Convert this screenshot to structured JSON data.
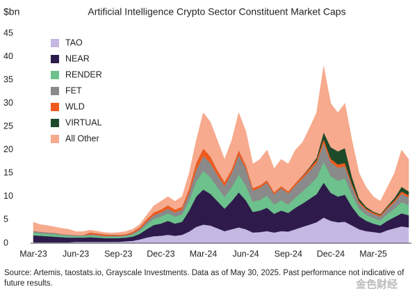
{
  "chart_data": {
    "type": "stacked_area",
    "title": "Artificial Intelligence Crypto Sector Constituent Market Caps",
    "ylabel": "$bn",
    "source": "Source: Artemis, taostats.io, Grayscale Investments. Data as of May 30, 2025. Past performance not indicative of future results.",
    "watermark": "金色财经",
    "legend": "upper left",
    "ylim": [
      0,
      45
    ],
    "yticks": [
      0,
      5,
      10,
      15,
      20,
      25,
      30,
      35,
      40,
      45
    ],
    "categories": [
      "Mar-23",
      null,
      null,
      null,
      null,
      null,
      "Jun-23",
      null,
      null,
      null,
      null,
      null,
      "Sep-23",
      null,
      null,
      null,
      null,
      null,
      "Dec-23",
      null,
      null,
      null,
      null,
      null,
      "Mar-24",
      null,
      null,
      null,
      null,
      null,
      "Jun-24",
      null,
      null,
      null,
      null,
      null,
      "Sep-24",
      null,
      null,
      null,
      null,
      null,
      "Dec-24",
      null,
      null,
      null,
      null,
      null,
      "Mar-25",
      null,
      null,
      null,
      null,
      null
    ],
    "series": [
      {
        "name": "TAO",
        "color": "#c4b8e3",
        "values": [
          0.2,
          0.2,
          0.2,
          0.2,
          0.2,
          0.2,
          0.3,
          0.3,
          0.3,
          0.3,
          0.3,
          0.3,
          0.3,
          0.4,
          0.5,
          0.8,
          1.2,
          1.5,
          1.6,
          1.8,
          1.6,
          1.8,
          2.5,
          3.5,
          4,
          3.8,
          3.2,
          2.6,
          3,
          3.4,
          3,
          2.3,
          2.4,
          2.6,
          2.3,
          2.6,
          2.5,
          3,
          3.5,
          4,
          4.5,
          5.5,
          4.8,
          4.5,
          4.6,
          3.8,
          3,
          2.6,
          2.4,
          2.2,
          2.8,
          3.2,
          3.6,
          3.4
        ]
      },
      {
        "name": "NEAR",
        "color": "#2e1b4b",
        "values": [
          1.5,
          1.4,
          1.3,
          1.2,
          1.1,
          1,
          0.9,
          0.9,
          1,
          0.9,
          0.8,
          0.8,
          0.8,
          0.8,
          0.9,
          1.2,
          1.8,
          2.4,
          2.6,
          3,
          2.6,
          2.8,
          4.5,
          6.5,
          7.5,
          6.8,
          5.8,
          4.8,
          6,
          7.5,
          6.2,
          4.4,
          4.6,
          5,
          4,
          4.4,
          4,
          4.6,
          5,
          5.5,
          6,
          7.5,
          6,
          5.5,
          5.8,
          4,
          2.8,
          2.2,
          1.8,
          1.6,
          2,
          2.4,
          2.8,
          2.6
        ]
      },
      {
        "name": "RENDER",
        "color": "#6cc18c",
        "values": [
          0.6,
          0.5,
          0.5,
          0.5,
          0.4,
          0.4,
          0.3,
          0.3,
          0.4,
          0.4,
          0.3,
          0.3,
          0.3,
          0.3,
          0.4,
          0.6,
          1,
          1.3,
          1.5,
          1.6,
          1.5,
          1.6,
          2.2,
          3.2,
          4,
          3.6,
          3,
          2.5,
          3,
          3.8,
          3.2,
          2.2,
          2.3,
          2.6,
          2,
          2.2,
          1.8,
          2.2,
          2.6,
          3,
          3.5,
          4.5,
          3.6,
          3.4,
          3.5,
          2.6,
          1.6,
          1.3,
          1.2,
          1.1,
          1.5,
          1.8,
          2.4,
          2.2
        ]
      },
      {
        "name": "FET",
        "color": "#8a8a8a",
        "values": [
          0.3,
          0.3,
          0.3,
          0.3,
          0.2,
          0.2,
          0.2,
          0.2,
          0.2,
          0.2,
          0.2,
          0.2,
          0.2,
          0.2,
          0.3,
          0.4,
          0.6,
          0.8,
          0.9,
          1,
          0.9,
          1,
          1.6,
          2.5,
          3.2,
          3,
          2.6,
          2.4,
          3,
          4.2,
          3.6,
          2.4,
          2.6,
          2.8,
          2.2,
          2.6,
          2.4,
          2.6,
          2.8,
          3,
          3.2,
          4,
          3,
          2.8,
          2.6,
          1.8,
          1.2,
          1,
          0.9,
          0.8,
          1.1,
          1.4,
          1.8,
          1.6
        ]
      },
      {
        "name": "WLD",
        "color": "#f05a1e",
        "values": [
          0,
          0,
          0,
          0,
          0,
          0,
          0,
          0,
          0.4,
          0.3,
          0.3,
          0.2,
          0.2,
          0.2,
          0.3,
          0.4,
          0.5,
          0.6,
          0.6,
          0.7,
          0.6,
          0.6,
          0.9,
          1.5,
          1.6,
          1.4,
          1,
          0.8,
          0.8,
          1,
          0.7,
          0.5,
          0.5,
          0.5,
          0.4,
          0.4,
          0.4,
          0.5,
          0.5,
          0.6,
          0.6,
          0.8,
          0.7,
          0.7,
          0.7,
          0.5,
          0.4,
          0.3,
          0.3,
          0.3,
          0.3,
          0.4,
          0.5,
          0.5
        ]
      },
      {
        "name": "VIRTUAL",
        "color": "#1f4a2a",
        "values": [
          0,
          0,
          0,
          0,
          0,
          0,
          0,
          0,
          0,
          0,
          0,
          0,
          0,
          0,
          0,
          0,
          0,
          0,
          0,
          0,
          0,
          0,
          0,
          0,
          0,
          0,
          0,
          0,
          0,
          0,
          0,
          0,
          0,
          0,
          0,
          0,
          0,
          0,
          0.1,
          0.2,
          0.5,
          1.5,
          2.5,
          2.8,
          3.2,
          1.5,
          0.6,
          0.4,
          0.2,
          0.2,
          0.3,
          0.5,
          1,
          0.8
        ]
      },
      {
        "name": "All Other",
        "color": "#f7aa8d",
        "values": [
          1.9,
          1.6,
          1.5,
          1.3,
          1.3,
          1.2,
          0.8,
          0.8,
          0.5,
          0.5,
          0.4,
          0.4,
          0.5,
          0.6,
          0.6,
          0.6,
          0.9,
          1.4,
          1.8,
          1.9,
          1.8,
          2.2,
          3.3,
          4.8,
          7.7,
          7.4,
          6.4,
          4.9,
          6.2,
          8.1,
          7.3,
          5.2,
          5.6,
          6.5,
          5.1,
          5.8,
          5.9,
          7.1,
          7.1,
          8.4,
          9.7,
          14.2,
          9.4,
          8.3,
          9.6,
          7.8,
          5.4,
          4.2,
          3.2,
          2.8,
          4,
          5.3,
          7.9,
          6.9
        ]
      }
    ]
  }
}
